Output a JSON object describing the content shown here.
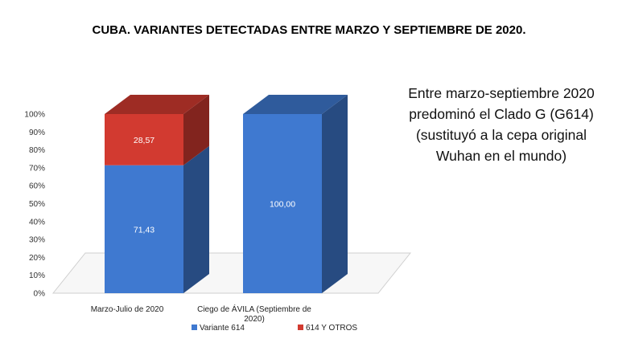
{
  "title": "CUBA. VARIANTES DETECTADAS ENTRE MARZO Y SEPTIEMBRE DE 2020.",
  "side_note": "Entre marzo-septiembre 2020 predominó el Clado G (G614) (sustituyó a la cepa original Wuhan en el mundo)",
  "colors": {
    "variante_614": "#3f79d0",
    "otros_614": "#d23a30"
  },
  "chart_data": {
    "type": "bar",
    "stacked": true,
    "percent": true,
    "three_d": true,
    "categories": [
      "Marzo-Julio de 2020",
      "Ciego de ÁVILA (Septiembre de 2020)"
    ],
    "category_lines": [
      [
        "Marzo-Julio de 2020"
      ],
      [
        "Ciego de ÁVILA (Septiembre de",
        "2020)"
      ]
    ],
    "series": [
      {
        "name": "Variante 614",
        "values": [
          71.43,
          100.0
        ],
        "labels": [
          "71,43",
          "100,00"
        ]
      },
      {
        "name": "614 Y OTROS",
        "values": [
          28.57,
          0
        ],
        "labels": [
          "28,57",
          ""
        ]
      }
    ],
    "ylim": [
      0,
      100
    ],
    "yticks": [
      "0%",
      "10%",
      "20%",
      "30%",
      "40%",
      "50%",
      "60%",
      "70%",
      "80%",
      "90%",
      "100%"
    ],
    "legend_position": "bottom",
    "grid": false
  }
}
